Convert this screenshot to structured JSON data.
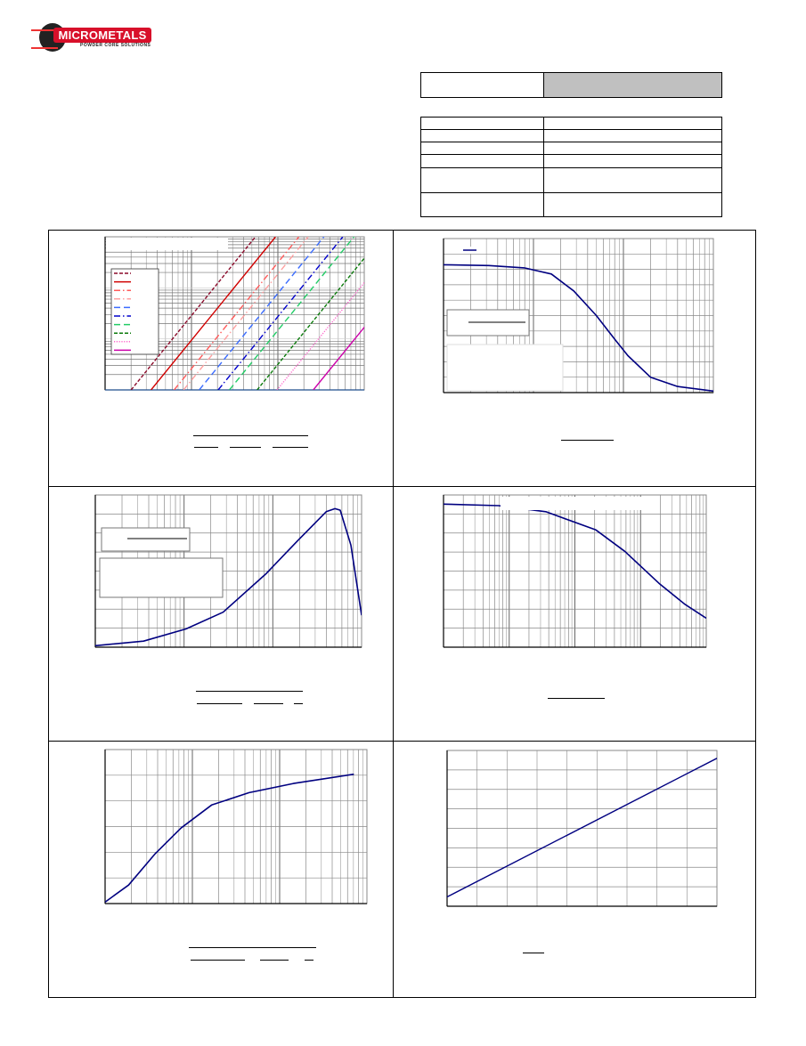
{
  "logo": {
    "brand": "MICROMETALS",
    "tagline": "POWDER CORE SOLUTIONS",
    "colors": {
      "red": "#d8102a",
      "tire": "#222222"
    }
  },
  "header_table": {
    "shaded_cell_color": "#c0c0c0"
  },
  "chart_data": [
    {
      "type": "line",
      "title": "",
      "xlabel": "",
      "ylabel": "",
      "xscale": "log",
      "yscale": "log",
      "xlim": [
        1,
        1000
      ],
      "ylim": [
        1,
        1000
      ],
      "grid": true,
      "legend": "left",
      "series": [
        {
          "color": "#8b0a2a",
          "style": "dashed",
          "points": [
            [
              2.0,
              1
            ],
            [
              55,
              1000
            ]
          ]
        },
        {
          "color": "#d00000",
          "style": "solid",
          "points": [
            [
              3.4,
              1
            ],
            [
              94,
              1000
            ]
          ]
        },
        {
          "color": "#ff5a5a",
          "style": "dashdot",
          "points": [
            [
              6.3,
              1
            ],
            [
              175,
              1000
            ]
          ]
        },
        {
          "color": "#ffa0a0",
          "style": "dashdot",
          "points": [
            [
              8.1,
              1
            ],
            [
              224,
              1000
            ]
          ]
        },
        {
          "color": "#3a6cff",
          "style": "dash",
          "points": [
            [
              12.3,
              1
            ],
            [
              341,
              1000
            ]
          ]
        },
        {
          "color": "#0000cc",
          "style": "dashdot",
          "points": [
            [
              20.4,
              1
            ],
            [
              565,
              1000
            ]
          ]
        },
        {
          "color": "#22cc66",
          "style": "dash",
          "points": [
            [
              27.5,
              1
            ],
            [
              762,
              1000
            ]
          ]
        },
        {
          "color": "#0a7a0a",
          "style": "dashed",
          "points": [
            [
              57.5,
              1
            ],
            [
              1593,
              1000
            ]
          ]
        },
        {
          "color": "#ff66cc",
          "style": "dotted",
          "points": [
            [
              97.7,
              1
            ],
            [
              2706,
              1000
            ]
          ]
        },
        {
          "color": "#cc00aa",
          "style": "solid",
          "points": [
            [
              257,
              1
            ],
            [
              7119,
              1000
            ]
          ]
        }
      ]
    },
    {
      "type": "line",
      "title": "",
      "xlabel": "",
      "ylabel": "",
      "xscale": "log",
      "yscale": "linear",
      "xlim": [
        1,
        1000
      ],
      "ylim": [
        0,
        100
      ],
      "grid": true,
      "legend": "top-left",
      "series": [
        {
          "color": "#000080",
          "style": "solid",
          "points": [
            [
              1,
              83
            ],
            [
              3.2,
              82.5
            ],
            [
              7.9,
              81
            ],
            [
              15.8,
              77
            ],
            [
              28,
              66
            ],
            [
              50,
              50
            ],
            [
              79,
              35
            ],
            [
              112,
              24
            ],
            [
              200,
              10
            ],
            [
              398,
              4
            ],
            [
              1000,
              1
            ]
          ]
        }
      ]
    },
    {
      "type": "line",
      "title": "",
      "xlabel": "",
      "ylabel": "",
      "xscale": "log",
      "yscale": "linear",
      "xlim": [
        1,
        1000
      ],
      "ylim": [
        0,
        100
      ],
      "grid": true,
      "legend": "top-left",
      "series": [
        {
          "color": "#000080",
          "style": "solid",
          "points": [
            [
              1,
              1
            ],
            [
              3.5,
              4
            ],
            [
              10.5,
              12
            ],
            [
              27.5,
              23
            ],
            [
              83,
              48
            ],
            [
              191,
              70
            ],
            [
              400,
              89
            ],
            [
              501,
              91
            ],
            [
              575,
              90
            ],
            [
              758,
              67
            ],
            [
              1000,
              21
            ]
          ]
        }
      ]
    },
    {
      "type": "line",
      "title": "",
      "xlabel": "",
      "ylabel": "",
      "xscale": "log",
      "yscale": "linear",
      "xlim": [
        1,
        10000
      ],
      "ylim": [
        0,
        100
      ],
      "grid": true,
      "legend": "top",
      "series": [
        {
          "color": "#000080",
          "style": "solid",
          "points": [
            [
              1,
              94
            ],
            [
              6.9,
              93
            ],
            [
              36,
              89
            ],
            [
              209,
              77
            ],
            [
              575,
              63
            ],
            [
              1905,
              42
            ],
            [
              4786,
              28
            ],
            [
              10000,
              19
            ]
          ]
        }
      ]
    },
    {
      "type": "line",
      "title": "",
      "xlabel": "",
      "ylabel": "",
      "xscale": "log",
      "yscale": "linear",
      "xlim": [
        1,
        1000
      ],
      "ylim": [
        0,
        100
      ],
      "grid": true,
      "legend": "none",
      "series": [
        {
          "color": "#000080",
          "style": "solid",
          "points": [
            [
              1,
              1
            ],
            [
              1.86,
              12
            ],
            [
              3.7,
              32
            ],
            [
              7.4,
              49
            ],
            [
              16.6,
              64
            ],
            [
              44.7,
              72
            ],
            [
              144,
              78
            ],
            [
              708,
              84
            ]
          ]
        }
      ]
    },
    {
      "type": "line",
      "title": "",
      "xlabel": "",
      "ylabel": "",
      "xscale": "linear",
      "yscale": "linear",
      "xlim": [
        0,
        100
      ],
      "ylim": [
        0,
        100
      ],
      "grid": true,
      "legend": "none",
      "series": [
        {
          "color": "#000080",
          "style": "solid",
          "points": [
            [
              0,
              6
            ],
            [
              100,
              95
            ]
          ]
        }
      ]
    }
  ]
}
